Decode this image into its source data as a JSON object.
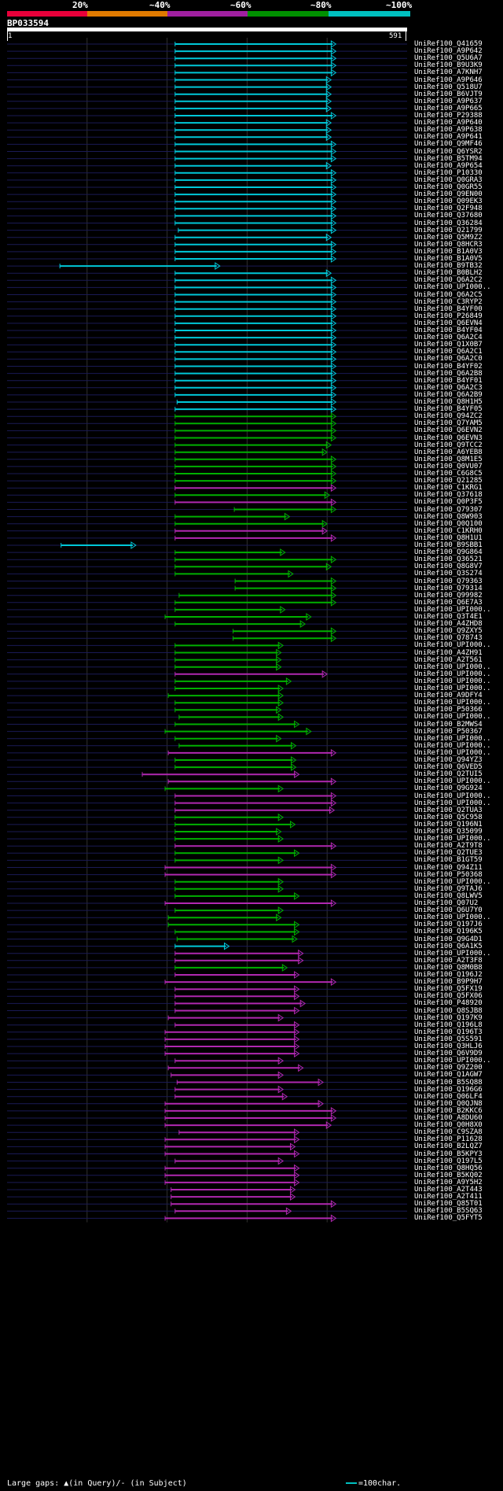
{
  "legend": {
    "labels": [
      "20%",
      "~40%",
      "~60%",
      "~80%",
      "~100%"
    ],
    "colors": [
      "#e8003a",
      "#e07a00",
      "#a020a0",
      "#009000",
      "#00c0c0"
    ]
  },
  "query": {
    "id": "BP033594",
    "start": "1",
    "end": "591"
  },
  "footer": {
    "gap_text": "Large gaps: ▲(in Query)/- (in Subject)",
    "scale_text": "=100char."
  },
  "hits": [
    {
      "name": "UniRef100_Q41659",
      "color": "cyan",
      "s": 0.42,
      "e": 0.822
    },
    {
      "name": "UniRef100_A9P642",
      "color": "cyan",
      "s": 0.42,
      "e": 0.822
    },
    {
      "name": "UniRef100_Q5U6A7",
      "color": "cyan",
      "s": 0.42,
      "e": 0.822
    },
    {
      "name": "UniRef100_B9U3K9",
      "color": "cyan",
      "s": 0.42,
      "e": 0.822
    },
    {
      "name": "UniRef100_A7KNH7",
      "color": "cyan",
      "s": 0.42,
      "e": 0.822
    },
    {
      "name": "UniRef100_A9P646",
      "color": "cyan",
      "s": 0.42,
      "e": 0.81
    },
    {
      "name": "UniRef100_Q518U7",
      "color": "cyan",
      "s": 0.42,
      "e": 0.81
    },
    {
      "name": "UniRef100_B6VJT9",
      "color": "cyan",
      "s": 0.42,
      "e": 0.81
    },
    {
      "name": "UniRef100_A9P637",
      "color": "cyan",
      "s": 0.42,
      "e": 0.81
    },
    {
      "name": "UniRef100_A9P665",
      "color": "cyan",
      "s": 0.42,
      "e": 0.81
    },
    {
      "name": "UniRef100_P29388",
      "color": "cyan",
      "s": 0.42,
      "e": 0.822
    },
    {
      "name": "UniRef100_A9P640",
      "color": "cyan",
      "s": 0.42,
      "e": 0.81
    },
    {
      "name": "UniRef100_A9P638",
      "color": "cyan",
      "s": 0.42,
      "e": 0.81
    },
    {
      "name": "UniRef100_A9P641",
      "color": "cyan",
      "s": 0.42,
      "e": 0.81
    },
    {
      "name": "UniRef100_Q9MF46",
      "color": "cyan",
      "s": 0.42,
      "e": 0.822
    },
    {
      "name": "UniRef100_Q6YSR2",
      "color": "cyan",
      "s": 0.42,
      "e": 0.822
    },
    {
      "name": "UniRef100_B5TM94",
      "color": "cyan",
      "s": 0.42,
      "e": 0.822
    },
    {
      "name": "UniRef100_A9P654",
      "color": "cyan",
      "s": 0.42,
      "e": 0.81
    },
    {
      "name": "UniRef100_P10330",
      "color": "cyan",
      "s": 0.42,
      "e": 0.822
    },
    {
      "name": "UniRef100_Q0GRA3",
      "color": "cyan",
      "s": 0.42,
      "e": 0.822
    },
    {
      "name": "UniRef100_Q0GR55",
      "color": "cyan",
      "s": 0.42,
      "e": 0.822
    },
    {
      "name": "UniRef100_Q9EN00",
      "color": "cyan",
      "s": 0.42,
      "e": 0.822
    },
    {
      "name": "UniRef100_Q09EK3",
      "color": "cyan",
      "s": 0.42,
      "e": 0.822
    },
    {
      "name": "UniRef100_Q2F948",
      "color": "cyan",
      "s": 0.42,
      "e": 0.822
    },
    {
      "name": "UniRef100_Q37680",
      "color": "cyan",
      "s": 0.42,
      "e": 0.822
    },
    {
      "name": "UniRef100_Q36284",
      "color": "cyan",
      "s": 0.42,
      "e": 0.822
    },
    {
      "name": "UniRef100_Q21799",
      "color": "cyan",
      "s": 0.428,
      "e": 0.822
    },
    {
      "name": "UniRef100_Q5M9Z2",
      "color": "cyan",
      "s": 0.42,
      "e": 0.81
    },
    {
      "name": "UniRef100_Q8HCR3",
      "color": "cyan",
      "s": 0.42,
      "e": 0.822
    },
    {
      "name": "UniRef100_B1A0V3",
      "color": "cyan",
      "s": 0.42,
      "e": 0.822
    },
    {
      "name": "UniRef100_B1A0V5",
      "color": "cyan",
      "s": 0.42,
      "e": 0.822
    },
    {
      "name": "UniRef100_B9TB32",
      "color": "cyan",
      "s": 0.132,
      "e": 0.532
    },
    {
      "name": "UniRef100_B0BLH2",
      "color": "cyan",
      "s": 0.42,
      "e": 0.81
    },
    {
      "name": "UniRef100_Q6A2C2",
      "color": "cyan",
      "s": 0.42,
      "e": 0.822
    },
    {
      "name": "UniRef100_UPI000..",
      "color": "cyan",
      "s": 0.42,
      "e": 0.822
    },
    {
      "name": "UniRef100_Q6A2C5",
      "color": "cyan",
      "s": 0.42,
      "e": 0.822
    },
    {
      "name": "UniRef100_C3RYP2",
      "color": "cyan",
      "s": 0.42,
      "e": 0.822
    },
    {
      "name": "UniRef100_B4YF00",
      "color": "cyan",
      "s": 0.42,
      "e": 0.822
    },
    {
      "name": "UniRef100_P26849",
      "color": "cyan",
      "s": 0.42,
      "e": 0.822
    },
    {
      "name": "UniRef100_Q6EVN4",
      "color": "cyan",
      "s": 0.42,
      "e": 0.822
    },
    {
      "name": "UniRef100_B4YF04",
      "color": "cyan",
      "s": 0.42,
      "e": 0.822
    },
    {
      "name": "UniRef100_Q6A2C4",
      "color": "cyan",
      "s": 0.42,
      "e": 0.822
    },
    {
      "name": "UniRef100_Q1X0B7",
      "color": "cyan",
      "s": 0.42,
      "e": 0.822
    },
    {
      "name": "UniRef100_Q6A2C1",
      "color": "cyan",
      "s": 0.42,
      "e": 0.822
    },
    {
      "name": "UniRef100_Q6A2C0",
      "color": "cyan",
      "s": 0.42,
      "e": 0.822
    },
    {
      "name": "UniRef100_B4YF02",
      "color": "cyan",
      "s": 0.42,
      "e": 0.822
    },
    {
      "name": "UniRef100_Q6A2B8",
      "color": "cyan",
      "s": 0.42,
      "e": 0.822
    },
    {
      "name": "UniRef100_B4YF01",
      "color": "cyan",
      "s": 0.42,
      "e": 0.822
    },
    {
      "name": "UniRef100_Q6A2C3",
      "color": "cyan",
      "s": 0.42,
      "e": 0.822
    },
    {
      "name": "UniRef100_Q6A2B9",
      "color": "cyan",
      "s": 0.42,
      "e": 0.822
    },
    {
      "name": "UniRef100_Q8H1H5",
      "color": "cyan",
      "s": 0.425,
      "e": 0.822
    },
    {
      "name": "UniRef100_B4YF05",
      "color": "cyan",
      "s": 0.42,
      "e": 0.822
    },
    {
      "name": "UniRef100_Q94ZC2",
      "color": "green",
      "s": 0.42,
      "e": 0.822
    },
    {
      "name": "UniRef100_Q7YAM5",
      "color": "green",
      "s": 0.42,
      "e": 0.822
    },
    {
      "name": "UniRef100_Q6EVN2",
      "color": "green",
      "s": 0.42,
      "e": 0.822
    },
    {
      "name": "UniRef100_Q6EVN3",
      "color": "green",
      "s": 0.42,
      "e": 0.822
    },
    {
      "name": "UniRef100_Q9TCC2",
      "color": "green",
      "s": 0.42,
      "e": 0.81
    },
    {
      "name": "UniRef100_A6YEB8",
      "color": "green",
      "s": 0.42,
      "e": 0.8
    },
    {
      "name": "UniRef100_Q8M1E5",
      "color": "green",
      "s": 0.42,
      "e": 0.822
    },
    {
      "name": "UniRef100_Q0VU07",
      "color": "green",
      "s": 0.42,
      "e": 0.822
    },
    {
      "name": "UniRef100_C6G8C5",
      "color": "green",
      "s": 0.42,
      "e": 0.822
    },
    {
      "name": "UniRef100_Q21285",
      "color": "green",
      "s": 0.42,
      "e": 0.822
    },
    {
      "name": "UniRef100_C1KRG1",
      "color": "magenta",
      "s": 0.42,
      "e": 0.822
    },
    {
      "name": "UniRef100_Q37618",
      "color": "green",
      "s": 0.42,
      "e": 0.806
    },
    {
      "name": "UniRef100_Q0P3F5",
      "color": "magenta",
      "s": 0.42,
      "e": 0.822
    },
    {
      "name": "UniRef100_Q79307",
      "color": "green",
      "s": 0.568,
      "e": 0.822
    },
    {
      "name": "UniRef100_Q8W903",
      "color": "green",
      "s": 0.42,
      "e": 0.706
    },
    {
      "name": "UniRef100_Q0Q100",
      "color": "green",
      "s": 0.42,
      "e": 0.8
    },
    {
      "name": "UniRef100_C1KRH0",
      "color": "magenta",
      "s": 0.42,
      "e": 0.8
    },
    {
      "name": "UniRef100_Q8H1U1",
      "color": "magenta",
      "s": 0.42,
      "e": 0.822
    },
    {
      "name": "UniRef100_B9SBB1",
      "color": "cyan",
      "s": 0.135,
      "e": 0.322
    },
    {
      "name": "UniRef100_Q9G864",
      "color": "green",
      "s": 0.42,
      "e": 0.695
    },
    {
      "name": "UniRef100_Q36521",
      "color": "green",
      "s": 0.42,
      "e": 0.822
    },
    {
      "name": "UniRef100_Q8G8V7",
      "color": "green",
      "s": 0.42,
      "e": 0.81
    },
    {
      "name": "UniRef100_Q3S274",
      "color": "green",
      "s": 0.42,
      "e": 0.715
    },
    {
      "name": "UniRef100_Q79363",
      "color": "green",
      "s": 0.57,
      "e": 0.822
    },
    {
      "name": "UniRef100_Q79314",
      "color": "green",
      "s": 0.57,
      "e": 0.822
    },
    {
      "name": "UniRef100_Q99982",
      "color": "green",
      "s": 0.43,
      "e": 0.822
    },
    {
      "name": "UniRef100_Q6E7A3",
      "color": "green",
      "s": 0.42,
      "e": 0.822
    },
    {
      "name": "UniRef100_UPI000..",
      "color": "green",
      "s": 0.42,
      "e": 0.695
    },
    {
      "name": "UniRef100_Q3T4E1",
      "color": "green",
      "s": 0.395,
      "e": 0.76
    },
    {
      "name": "UniRef100_A4ZHD8",
      "color": "green",
      "s": 0.42,
      "e": 0.745
    },
    {
      "name": "UniRef100_Q9ZXY5",
      "color": "green",
      "s": 0.565,
      "e": 0.822
    },
    {
      "name": "UniRef100_Q78743",
      "color": "green",
      "s": 0.565,
      "e": 0.822
    },
    {
      "name": "UniRef100_UPI000..",
      "color": "green",
      "s": 0.42,
      "e": 0.69
    },
    {
      "name": "UniRef100_A4ZH91",
      "color": "green",
      "s": 0.42,
      "e": 0.685
    },
    {
      "name": "UniRef100_A2T561",
      "color": "green",
      "s": 0.42,
      "e": 0.685
    },
    {
      "name": "UniRef100_UPI000..",
      "color": "green",
      "s": 0.42,
      "e": 0.685
    },
    {
      "name": "UniRef100_UPI000..",
      "color": "magenta",
      "s": 0.42,
      "e": 0.8
    },
    {
      "name": "UniRef100_UPI000..",
      "color": "green",
      "s": 0.42,
      "e": 0.71
    },
    {
      "name": "UniRef100_UPI000..",
      "color": "green",
      "s": 0.42,
      "e": 0.69
    },
    {
      "name": "UniRef100_A9DFY4",
      "color": "green",
      "s": 0.403,
      "e": 0.69
    },
    {
      "name": "UniRef100_UPI000..",
      "color": "green",
      "s": 0.42,
      "e": 0.69
    },
    {
      "name": "UniRef100_P50366",
      "color": "green",
      "s": 0.42,
      "e": 0.685
    },
    {
      "name": "UniRef100_UPI000..",
      "color": "green",
      "s": 0.43,
      "e": 0.69
    },
    {
      "name": "UniRef100_B2MWS4",
      "color": "green",
      "s": 0.42,
      "e": 0.73
    },
    {
      "name": "UniRef100_P50367",
      "color": "green",
      "s": 0.395,
      "e": 0.76
    },
    {
      "name": "UniRef100_UPI000..",
      "color": "green",
      "s": 0.42,
      "e": 0.685
    },
    {
      "name": "UniRef100_UPI000..",
      "color": "green",
      "s": 0.43,
      "e": 0.722
    },
    {
      "name": "UniRef100_UPI000..",
      "color": "magenta",
      "s": 0.403,
      "e": 0.822
    },
    {
      "name": "UniRef100_Q94YZ3",
      "color": "green",
      "s": 0.42,
      "e": 0.722
    },
    {
      "name": "UniRef100_Q6VED5",
      "color": "green",
      "s": 0.42,
      "e": 0.722
    },
    {
      "name": "UniRef100_Q2TUI5",
      "color": "magenta",
      "s": 0.338,
      "e": 0.73
    },
    {
      "name": "UniRef100_UPI000..",
      "color": "magenta",
      "s": 0.403,
      "e": 0.822
    },
    {
      "name": "UniRef100_Q9G924",
      "color": "green",
      "s": 0.395,
      "e": 0.69
    },
    {
      "name": "UniRef100_UPI000..",
      "color": "magenta",
      "s": 0.42,
      "e": 0.822
    },
    {
      "name": "UniRef100_UPI000..",
      "color": "magenta",
      "s": 0.42,
      "e": 0.822
    },
    {
      "name": "UniRef100_Q2TUA3",
      "color": "magenta",
      "s": 0.42,
      "e": 0.818
    },
    {
      "name": "UniRef100_Q5C958",
      "color": "green",
      "s": 0.42,
      "e": 0.69
    },
    {
      "name": "UniRef100_Q196N1",
      "color": "green",
      "s": 0.42,
      "e": 0.72
    },
    {
      "name": "UniRef100_Q35099",
      "color": "green",
      "s": 0.42,
      "e": 0.685
    },
    {
      "name": "UniRef100_UPI000..",
      "color": "green",
      "s": 0.42,
      "e": 0.69
    },
    {
      "name": "UniRef100_A2T9T8",
      "color": "magenta",
      "s": 0.42,
      "e": 0.822
    },
    {
      "name": "UniRef100_Q2TUE3",
      "color": "green",
      "s": 0.42,
      "e": 0.73
    },
    {
      "name": "UniRef100_B1GT59",
      "color": "green",
      "s": 0.42,
      "e": 0.69
    },
    {
      "name": "UniRef100_Q94Z11",
      "color": "magenta",
      "s": 0.395,
      "e": 0.822
    },
    {
      "name": "UniRef100_P50368",
      "color": "magenta",
      "s": 0.395,
      "e": 0.822
    },
    {
      "name": "UniRef100_UPI000..",
      "color": "green",
      "s": 0.42,
      "e": 0.69
    },
    {
      "name": "UniRef100_Q9TAJ6",
      "color": "green",
      "s": 0.42,
      "e": 0.69
    },
    {
      "name": "UniRef100_Q8LWV5",
      "color": "green",
      "s": 0.42,
      "e": 0.73
    },
    {
      "name": "UniRef100_Q07U2",
      "color": "magenta",
      "s": 0.395,
      "e": 0.822
    },
    {
      "name": "UniRef100_Q6U7Y0",
      "color": "green",
      "s": 0.42,
      "e": 0.69
    },
    {
      "name": "UniRef100_UPI000..",
      "color": "green",
      "s": 0.403,
      "e": 0.685
    },
    {
      "name": "UniRef100_Q197J6",
      "color": "green",
      "s": 0.403,
      "e": 0.73
    },
    {
      "name": "UniRef100_Q196K5",
      "color": "green",
      "s": 0.42,
      "e": 0.73
    },
    {
      "name": "UniRef100_Q9G4D1",
      "color": "green",
      "s": 0.425,
      "e": 0.725
    },
    {
      "name": "UniRef100_Q6A1K5",
      "color": "cyan",
      "s": 0.42,
      "e": 0.555
    },
    {
      "name": "UniRef100_UPI000..",
      "color": "magenta",
      "s": 0.42,
      "e": 0.74
    },
    {
      "name": "UniRef100_A2T3F8",
      "color": "magenta",
      "s": 0.42,
      "e": 0.74
    },
    {
      "name": "UniRef100_Q8M0B8",
      "color": "green",
      "s": 0.42,
      "e": 0.7
    },
    {
      "name": "UniRef100_Q196J2",
      "color": "magenta",
      "s": 0.42,
      "e": 0.73
    },
    {
      "name": "UniRef100_B9P9H7",
      "color": "magenta",
      "s": 0.395,
      "e": 0.822
    },
    {
      "name": "UniRef100_Q5FX19",
      "color": "magenta",
      "s": 0.42,
      "e": 0.73
    },
    {
      "name": "UniRef100_Q5FX06",
      "color": "magenta",
      "s": 0.42,
      "e": 0.73
    },
    {
      "name": "UniRef100_P48920",
      "color": "magenta",
      "s": 0.42,
      "e": 0.745
    },
    {
      "name": "UniRef100_Q8SJB8",
      "color": "magenta",
      "s": 0.42,
      "e": 0.73
    },
    {
      "name": "UniRef100_Q197K9",
      "color": "magenta",
      "s": 0.403,
      "e": 0.69
    },
    {
      "name": "UniRef100_Q196L8",
      "color": "magenta",
      "s": 0.42,
      "e": 0.73
    },
    {
      "name": "UniRef100_Q196T3",
      "color": "magenta",
      "s": 0.395,
      "e": 0.73
    },
    {
      "name": "UniRef100_Q5S591",
      "color": "magenta",
      "s": 0.395,
      "e": 0.73
    },
    {
      "name": "UniRef100_Q3HLJ6",
      "color": "magenta",
      "s": 0.395,
      "e": 0.73
    },
    {
      "name": "UniRef100_Q6V9D9",
      "color": "magenta",
      "s": 0.395,
      "e": 0.73
    },
    {
      "name": "UniRef100_UPI000..",
      "color": "magenta",
      "s": 0.42,
      "e": 0.69
    },
    {
      "name": "UniRef100_Q9Z200",
      "color": "magenta",
      "s": 0.403,
      "e": 0.74
    },
    {
      "name": "UniRef100_Q1AGW7",
      "color": "magenta",
      "s": 0.41,
      "e": 0.69
    },
    {
      "name": "UniRef100_B5SQ88",
      "color": "magenta",
      "s": 0.425,
      "e": 0.79
    },
    {
      "name": "UniRef100_Q196G6",
      "color": "magenta",
      "s": 0.42,
      "e": 0.69
    },
    {
      "name": "UniRef100_Q06LF4",
      "color": "magenta",
      "s": 0.42,
      "e": 0.7
    },
    {
      "name": "UniRef100_Q0QJN8",
      "color": "magenta",
      "s": 0.395,
      "e": 0.79
    },
    {
      "name": "UniRef100_B2KKC6",
      "color": "magenta",
      "s": 0.395,
      "e": 0.822
    },
    {
      "name": "UniRef100_A8DU60",
      "color": "magenta",
      "s": 0.395,
      "e": 0.822
    },
    {
      "name": "UniRef100_Q0H8X0",
      "color": "magenta",
      "s": 0.395,
      "e": 0.81
    },
    {
      "name": "UniRef100_C9SZA8",
      "color": "magenta",
      "s": 0.43,
      "e": 0.73
    },
    {
      "name": "UniRef100_P11628",
      "color": "magenta",
      "s": 0.395,
      "e": 0.73
    },
    {
      "name": "UniRef100_B2LQZ7",
      "color": "magenta",
      "s": 0.395,
      "e": 0.72
    },
    {
      "name": "UniRef100_B5KPY3",
      "color": "magenta",
      "s": 0.395,
      "e": 0.73
    },
    {
      "name": "UniRef100_Q197L5",
      "color": "magenta",
      "s": 0.42,
      "e": 0.69
    },
    {
      "name": "UniRef100_Q8HQ56",
      "color": "magenta",
      "s": 0.395,
      "e": 0.73
    },
    {
      "name": "UniRef100_B5KQ02",
      "color": "magenta",
      "s": 0.395,
      "e": 0.73
    },
    {
      "name": "UniRef100_A9Y5H2",
      "color": "magenta",
      "s": 0.395,
      "e": 0.73
    },
    {
      "name": "UniRef100_A2T443",
      "color": "magenta",
      "s": 0.41,
      "e": 0.72
    },
    {
      "name": "UniRef100_A2T411",
      "color": "magenta",
      "s": 0.41,
      "e": 0.72
    },
    {
      "name": "UniRef100_Q85T01",
      "color": "magenta",
      "s": 0.41,
      "e": 0.822
    },
    {
      "name": "UniRef100_B5SQ63",
      "color": "magenta",
      "s": 0.42,
      "e": 0.71
    },
    {
      "name": "UniRef100_Q5FYT5",
      "color": "magenta",
      "s": 0.395,
      "e": 0.822
    }
  ]
}
